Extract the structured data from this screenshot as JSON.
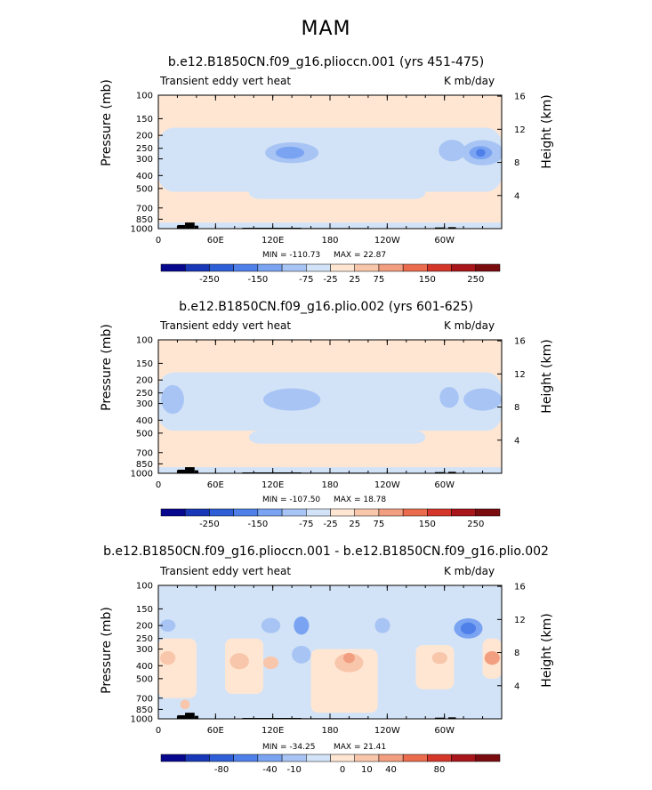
{
  "title": "MAM",
  "colors": {
    "bins_abs": [
      "#08088f",
      "#1838b8",
      "#2f5fd6",
      "#4f80ea",
      "#7aa4f2",
      "#a7c4f4",
      "#d3e3f7",
      "#ffe6d2",
      "#f8c6aa",
      "#f29e80",
      "#ea6c4c",
      "#d4372a",
      "#a8151b",
      "#7a0c10"
    ],
    "land": "#000000"
  },
  "chart_data": [
    {
      "type": "heatmap",
      "title": "b.e12.B1850CN.f09_g16.plioccn.001 (yrs 451-475)",
      "left_label": "Transient eddy vert heat",
      "right_label": "K mb/day",
      "xlabel": "",
      "ylabel": "Pressure (mb)",
      "ylabel_right": "Height (km)",
      "x_tick_labels": [
        "0",
        "60E",
        "120E",
        "180",
        "120W",
        "60W"
      ],
      "y_tick_labels": [
        "100",
        "150",
        "200",
        "250",
        "300",
        "400",
        "500",
        "700",
        "850",
        "1000"
      ],
      "height_tick_labels": [
        "16",
        "12",
        "8",
        "4"
      ],
      "min_label": "MIN = -110.73",
      "max_label": "MAX = 22.87",
      "colorbar_labels": [
        "-250",
        "-150",
        "-75",
        "-25",
        "25",
        "75",
        "150",
        "250"
      ],
      "features": [
        {
          "lon": 15,
          "p": 270,
          "dlon": 14,
          "dp": 160,
          "bin": 6
        },
        {
          "lon": 150,
          "p": 280,
          "dlon": 55,
          "dp": 140,
          "bin": 6
        },
        {
          "lon": 140,
          "p": 270,
          "dlon": 28,
          "dp": 80,
          "bin": 5
        },
        {
          "lon": 138,
          "p": 270,
          "dlon": 15,
          "dp": 40,
          "bin": 4
        },
        {
          "lon": 308,
          "p": 260,
          "dlon": 14,
          "dp": 80,
          "bin": 5
        },
        {
          "lon": 340,
          "p": 270,
          "dlon": 22,
          "dp": 100,
          "bin": 5
        },
        {
          "lon": 338,
          "p": 270,
          "dlon": 12,
          "dp": 45,
          "bin": 4
        },
        {
          "lon": 338,
          "p": 270,
          "dlon": 5,
          "dp": 20,
          "bin": 3
        }
      ]
    },
    {
      "type": "heatmap",
      "title": "b.e12.B1850CN.f09_g16.plio.002 (yrs 601-625)",
      "left_label": "Transient eddy vert heat",
      "right_label": "K mb/day",
      "xlabel": "",
      "ylabel": "Pressure (mb)",
      "ylabel_right": "Height (km)",
      "x_tick_labels": [
        "0",
        "60E",
        "120E",
        "180",
        "120W",
        "60W"
      ],
      "y_tick_labels": [
        "100",
        "150",
        "200",
        "250",
        "300",
        "400",
        "500",
        "700",
        "850",
        "1000"
      ],
      "height_tick_labels": [
        "16",
        "12",
        "8",
        "4"
      ],
      "min_label": "MIN = -107.50",
      "max_label": "MAX = 18.78",
      "colorbar_labels": [
        "-250",
        "-150",
        "-75",
        "-25",
        "25",
        "75",
        "150",
        "250"
      ],
      "features": [
        {
          "lon": 15,
          "p": 280,
          "dlon": 12,
          "dp": 120,
          "bin": 5
        },
        {
          "lon": 140,
          "p": 280,
          "dlon": 30,
          "dp": 90,
          "bin": 5
        },
        {
          "lon": 305,
          "p": 270,
          "dlon": 10,
          "dp": 80,
          "bin": 5
        },
        {
          "lon": 340,
          "p": 280,
          "dlon": 20,
          "dp": 90,
          "bin": 5
        }
      ]
    },
    {
      "type": "heatmap",
      "title": "b.e12.B1850CN.f09_g16.plioccn.001 - b.e12.B1850CN.f09_g16.plio.002",
      "left_label": "Transient eddy vert heat",
      "right_label": "K mb/day",
      "xlabel": "",
      "ylabel": "Pressure (mb)",
      "ylabel_right": "Height (km)",
      "x_tick_labels": [
        "0",
        "60E",
        "120E",
        "180",
        "120W",
        "60W"
      ],
      "y_tick_labels": [
        "100",
        "150",
        "200",
        "250",
        "300",
        "400",
        "500",
        "700",
        "850",
        "1000"
      ],
      "height_tick_labels": [
        "16",
        "12",
        "8",
        "4"
      ],
      "min_label": "MIN = -34.25",
      "max_label": "MAX = 21.41",
      "colorbar_labels": [
        "-80",
        "-40",
        "-10",
        "0",
        "10",
        "40",
        "80"
      ],
      "features": [
        {
          "lon": 10,
          "p": 200,
          "dlon": 8,
          "dp": 30,
          "bin": 5
        },
        {
          "lon": 10,
          "p": 350,
          "dlon": 8,
          "dp": 60,
          "bin": 8
        },
        {
          "lon": 28,
          "p": 780,
          "dlon": 5,
          "dp": 80,
          "bin": 8
        },
        {
          "lon": 85,
          "p": 370,
          "dlon": 10,
          "dp": 80,
          "bin": 8
        },
        {
          "lon": 118,
          "p": 200,
          "dlon": 10,
          "dp": 40,
          "bin": 5
        },
        {
          "lon": 118,
          "p": 380,
          "dlon": 8,
          "dp": 60,
          "bin": 8
        },
        {
          "lon": 150,
          "p": 200,
          "dlon": 8,
          "dp": 50,
          "bin": 4
        },
        {
          "lon": 150,
          "p": 330,
          "dlon": 10,
          "dp": 80,
          "bin": 5
        },
        {
          "lon": 200,
          "p": 380,
          "dlon": 15,
          "dp": 100,
          "bin": 8
        },
        {
          "lon": 200,
          "p": 350,
          "dlon": 6,
          "dp": 40,
          "bin": 9
        },
        {
          "lon": 235,
          "p": 200,
          "dlon": 8,
          "dp": 40,
          "bin": 5
        },
        {
          "lon": 295,
          "p": 350,
          "dlon": 8,
          "dp": 50,
          "bin": 8
        },
        {
          "lon": 325,
          "p": 210,
          "dlon": 15,
          "dp": 60,
          "bin": 4
        },
        {
          "lon": 325,
          "p": 210,
          "dlon": 8,
          "dp": 30,
          "bin": 3
        },
        {
          "lon": 350,
          "p": 350,
          "dlon": 8,
          "dp": 60,
          "bin": 9
        }
      ]
    }
  ]
}
